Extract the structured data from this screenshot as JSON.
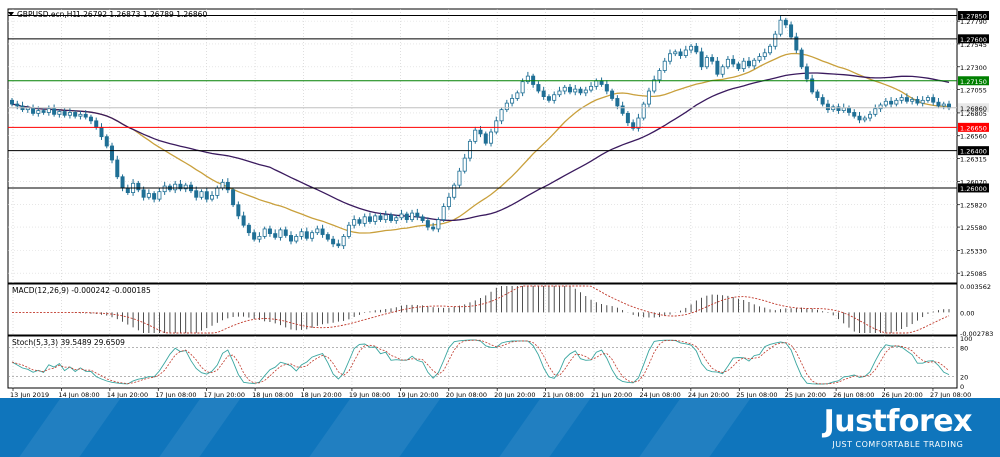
{
  "chart_data": [
    {
      "type": "candlestick",
      "title": "GBPUSD.ecn,H1",
      "ohlc_header": "1.26792 1.26873 1.26789 1.26860",
      "ylim": [
        1.2498,
        1.2792
      ],
      "y_ticks": [
        "1.27790",
        "1.27545",
        "1.27300",
        "1.27055",
        "1.26805",
        "1.26560",
        "1.26315",
        "1.26070",
        "1.25820",
        "1.25580",
        "1.25330",
        "1.25085"
      ],
      "y_tick_values": [
        1.2779,
        1.27545,
        1.273,
        1.27055,
        1.26805,
        1.2656,
        1.26315,
        1.2607,
        1.2582,
        1.2558,
        1.2533,
        1.25085
      ],
      "horizontal_levels": [
        {
          "label": "1.27850",
          "value": 1.2785,
          "color": "#000000"
        },
        {
          "label": "1.27600",
          "value": 1.276,
          "color": "#000000"
        },
        {
          "label": "1.27150",
          "value": 1.2715,
          "color": "#008000"
        },
        {
          "label": "1.26860",
          "value": 1.2686,
          "color": "#c0c0c0"
        },
        {
          "label": "1.26650",
          "value": 1.2665,
          "color": "#ff0000"
        },
        {
          "label": "1.26400",
          "value": 1.264,
          "color": "#000000"
        },
        {
          "label": "1.26000",
          "value": 1.26,
          "color": "#000000"
        }
      ],
      "candle_color": "#1f6f95",
      "close_series": [
        1.269,
        1.2688,
        1.2684,
        1.2686,
        1.268,
        1.2683,
        1.2681,
        1.2685,
        1.2679,
        1.2682,
        1.2678,
        1.2681,
        1.2677,
        1.2679,
        1.2676,
        1.2672,
        1.2665,
        1.2655,
        1.2645,
        1.263,
        1.2612,
        1.26,
        1.2595,
        1.2605,
        1.2598,
        1.259,
        1.2594,
        1.2588,
        1.2596,
        1.2602,
        1.2598,
        1.2604,
        1.2599,
        1.2603,
        1.2597,
        1.259,
        1.2596,
        1.2588,
        1.2592,
        1.26,
        1.2606,
        1.2598,
        1.2582,
        1.257,
        1.256,
        1.2552,
        1.2545,
        1.2548,
        1.2556,
        1.2551,
        1.2547,
        1.2555,
        1.2549,
        1.2543,
        1.2548,
        1.2553,
        1.2546,
        1.2552,
        1.2556,
        1.255,
        1.2545,
        1.254,
        1.2538,
        1.2548,
        1.256,
        1.2566,
        1.2562,
        1.2569,
        1.2564,
        1.257,
        1.2566,
        1.2571,
        1.2565,
        1.2568,
        1.2572,
        1.2566,
        1.2573,
        1.2569,
        1.2565,
        1.2558,
        1.2556,
        1.2566,
        1.258,
        1.259,
        1.2603,
        1.2618,
        1.2632,
        1.265,
        1.2662,
        1.2658,
        1.2648,
        1.266,
        1.2672,
        1.2684,
        1.2691,
        1.2696,
        1.2702,
        1.2714,
        1.272,
        1.2711,
        1.2704,
        1.2698,
        1.2694,
        1.27,
        1.2704,
        1.2708,
        1.2703,
        1.2706,
        1.2702,
        1.2705,
        1.2709,
        1.2715,
        1.2711,
        1.2704,
        1.2696,
        1.2688,
        1.268,
        1.267,
        1.2664,
        1.2675,
        1.269,
        1.2704,
        1.2716,
        1.2726,
        1.2736,
        1.2744,
        1.2746,
        1.2742,
        1.2748,
        1.2752,
        1.2746,
        1.273,
        1.274,
        1.2736,
        1.2722,
        1.273,
        1.2738,
        1.2733,
        1.2728,
        1.2736,
        1.2731,
        1.2737,
        1.2741,
        1.2745,
        1.2752,
        1.2765,
        1.278,
        1.2775,
        1.2762,
        1.2748,
        1.273,
        1.2717,
        1.2703,
        1.2697,
        1.269,
        1.2684,
        1.2687,
        1.2683,
        1.2686,
        1.2681,
        1.2677,
        1.2673,
        1.2675,
        1.2679,
        1.2685,
        1.2689,
        1.2693,
        1.269,
        1.2694,
        1.2697,
        1.2693,
        1.2695,
        1.2691,
        1.2694,
        1.2697,
        1.2692,
        1.2688,
        1.269,
        1.2686
      ],
      "sma_fast_color": "#c9a03c",
      "sma_slow_color": "#3a1a5e",
      "x_labels": [
        "13 Jun 2019",
        "14 Jun 08:00",
        "14 Jun 20:00",
        "17 Jun 08:00",
        "17 Jun 20:00",
        "18 Jun 08:00",
        "18 Jun 20:00",
        "19 Jun 08:00",
        "19 Jun 20:00",
        "20 Jun 08:00",
        "20 Jun 20:00",
        "21 Jun 08:00",
        "21 Jun 20:00",
        "24 Jun 08:00",
        "24 Jun 20:00",
        "25 Jun 08:00",
        "25 Jun 20:00",
        "26 Jun 08:00",
        "26 Jun 20:00",
        "27 Jun 08:00"
      ]
    },
    {
      "type": "histogram",
      "title": "MACD(12,26,9) -0.000242 -0.000185",
      "y_ticks": [
        "0.003562",
        "0.00",
        "-0.002783"
      ],
      "ylim": [
        -0.002783,
        0.003562
      ],
      "signal_color": "#c0392b"
    },
    {
      "type": "line",
      "title": "Stoch(5,3,3) 39.5489 29.6509",
      "y_ticks": [
        "100",
        "80",
        "20",
        "0"
      ],
      "ylim": [
        0,
        100
      ],
      "levels": [
        80,
        20
      ],
      "main_color": "#3aa6a0",
      "signal_color": "#c0392b"
    }
  ],
  "footer": {
    "brand": "Justforex",
    "tagline": "JUST COMFORTABLE TRADING"
  }
}
